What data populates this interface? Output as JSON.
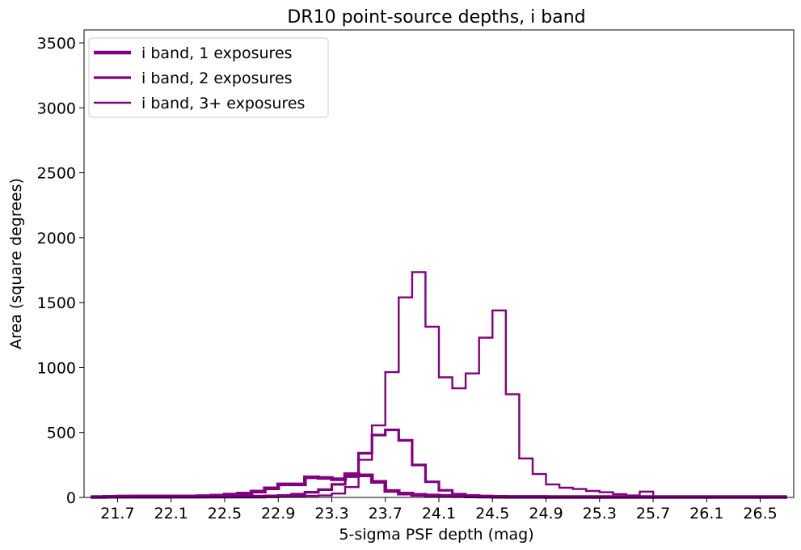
{
  "chart_data": {
    "type": "line",
    "title": "DR10 point-source depths, i band",
    "xlabel": "5-sigma PSF depth (mag)",
    "ylabel": "Area (square degrees)",
    "xlim": [
      21.45,
      26.75
    ],
    "ylim": [
      0,
      3600
    ],
    "xticks": [
      "21.7",
      "22.1",
      "22.5",
      "22.9",
      "23.3",
      "23.7",
      "24.1",
      "24.5",
      "24.9",
      "25.3",
      "25.7",
      "26.1",
      "26.5"
    ],
    "yticks": [
      "0",
      "500",
      "1000",
      "1500",
      "2000",
      "2500",
      "3000",
      "3500"
    ],
    "grid": false,
    "legend_position": "top-left",
    "bin_edges": [
      21.5,
      21.6,
      21.7,
      21.8,
      21.9,
      22.0,
      22.1,
      22.2,
      22.3,
      22.4,
      22.5,
      22.6,
      22.7,
      22.8,
      22.9,
      23.0,
      23.1,
      23.2,
      23.3,
      23.4,
      23.5,
      23.6,
      23.7,
      23.8,
      23.9,
      24.0,
      24.1,
      24.2,
      24.3,
      24.4,
      24.5,
      24.6,
      24.7,
      24.8,
      24.9,
      25.0,
      25.1,
      25.2,
      25.3,
      25.4,
      25.5,
      25.6,
      25.7,
      25.8,
      25.9,
      26.0,
      26.1,
      26.2,
      26.3,
      26.4,
      26.5,
      26.6,
      26.7
    ],
    "series": [
      {
        "name": "i band, 1 exposures",
        "color": "#800080",
        "linewidth": "thick",
        "values": [
          3,
          5,
          7,
          8,
          8,
          8,
          8,
          8,
          10,
          14,
          22,
          30,
          45,
          70,
          100,
          100,
          155,
          150,
          140,
          180,
          170,
          120,
          50,
          30,
          20,
          15,
          12,
          10,
          8,
          6,
          5,
          4,
          4,
          4,
          3,
          3,
          3,
          3,
          3,
          3,
          3,
          3,
          3,
          3,
          3,
          3,
          3,
          3,
          3,
          3,
          3,
          3
        ]
      },
      {
        "name": "i band, 2 exposures",
        "color": "#800080",
        "linewidth": "medium",
        "values": [
          1,
          1,
          1,
          1,
          1,
          1,
          2,
          2,
          3,
          5,
          5,
          8,
          10,
          12,
          15,
          25,
          40,
          60,
          100,
          160,
          340,
          480,
          520,
          440,
          250,
          120,
          55,
          25,
          15,
          10,
          8,
          5,
          4,
          3,
          3,
          2,
          2,
          2,
          2,
          2,
          2,
          2,
          2,
          2,
          2,
          2,
          2,
          2,
          2,
          2,
          2,
          2
        ]
      },
      {
        "name": "i band, 3+ exposures",
        "color": "#800080",
        "linewidth": "thin",
        "values": [
          0,
          0,
          0,
          0,
          0,
          0,
          0,
          0,
          0,
          0,
          0,
          0,
          0,
          2,
          5,
          8,
          12,
          15,
          30,
          80,
          290,
          555,
          965,
          1540,
          1735,
          1315,
          925,
          840,
          955,
          1230,
          1440,
          795,
          300,
          180,
          100,
          75,
          65,
          50,
          40,
          25,
          15,
          45,
          5,
          3,
          2,
          2,
          1,
          1,
          1,
          1,
          1,
          1
        ]
      }
    ]
  }
}
